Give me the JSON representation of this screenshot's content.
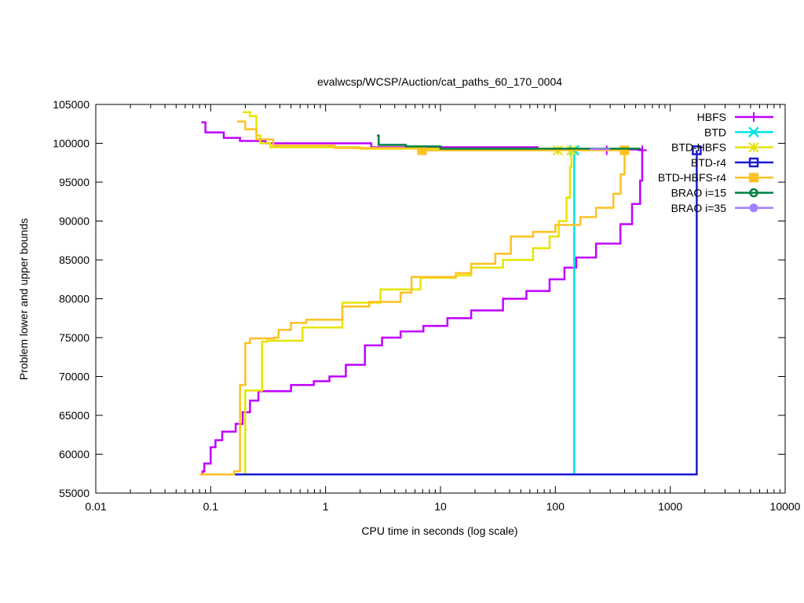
{
  "chart_data": {
    "type": "line",
    "title": "evalwcsp/WCSP/Auction/cat_paths_60_170_0004",
    "xlabel": "CPU time in seconds (log scale)",
    "ylabel": "Problem lower and upper bounds",
    "xscale": "log",
    "xlim": [
      0.01,
      10000
    ],
    "ylim": [
      55000,
      105000
    ],
    "xticks": [
      0.01,
      0.1,
      1,
      10,
      100,
      1000,
      10000
    ],
    "xtick_labels": [
      "0.01",
      "0.1",
      "1",
      "10",
      "100",
      "1000",
      "10000"
    ],
    "yticks": [
      55000,
      60000,
      65000,
      70000,
      75000,
      80000,
      85000,
      90000,
      95000,
      100000,
      105000
    ],
    "ytick_labels": [
      "55000",
      "60000",
      "65000",
      "70000",
      "75000",
      "80000",
      "85000",
      "90000",
      "95000",
      "100000",
      "105000"
    ],
    "legend_position": "top-right",
    "series": [
      {
        "name": "HBFS",
        "color": "#c000ff",
        "marker": "plus",
        "lower": [
          [
            0.083,
            57400
          ],
          [
            0.085,
            57800
          ],
          [
            0.088,
            58800
          ],
          [
            0.1,
            60900
          ],
          [
            0.11,
            61800
          ],
          [
            0.126,
            62900
          ],
          [
            0.165,
            63900
          ],
          [
            0.19,
            65400
          ],
          [
            0.22,
            66900
          ],
          [
            0.26,
            68100
          ],
          [
            0.5,
            68900
          ],
          [
            0.79,
            69400
          ],
          [
            1.08,
            70000
          ],
          [
            1.5,
            71500
          ],
          [
            2.2,
            74000
          ],
          [
            3.1,
            75000
          ],
          [
            4.5,
            75800
          ],
          [
            7.1,
            76500
          ],
          [
            11.5,
            77500
          ],
          [
            18.5,
            78500
          ],
          [
            35,
            80000
          ],
          [
            56,
            81000
          ],
          [
            89,
            82500
          ],
          [
            120,
            84000
          ],
          [
            152,
            85300
          ],
          [
            226,
            87100
          ],
          [
            368,
            89600
          ],
          [
            465,
            92200
          ],
          [
            547,
            95200
          ],
          [
            570,
            99100
          ]
        ],
        "upper": [
          [
            0.083,
            102700
          ],
          [
            0.09,
            101400
          ],
          [
            0.13,
            100700
          ],
          [
            0.18,
            100300
          ],
          [
            0.3,
            100000
          ],
          [
            2.5,
            99500
          ],
          [
            70,
            99200
          ],
          [
            570,
            99100
          ]
        ],
        "markers": [
          [
            280,
            99100
          ],
          [
            570,
            99100
          ]
        ]
      },
      {
        "name": "BTD",
        "color": "#00e5e5",
        "marker": "x",
        "lower": [
          [
            146,
            57400
          ],
          [
            146,
            99100
          ]
        ],
        "upper": [],
        "markers": [
          [
            146,
            99100
          ]
        ]
      },
      {
        "name": "BTD-HBFS",
        "color": "#e5e500",
        "marker": "star",
        "lower": [
          [
            0.09,
            57400
          ],
          [
            0.2,
            57400
          ],
          [
            0.2,
            68200
          ],
          [
            0.28,
            68200
          ],
          [
            0.28,
            74500
          ],
          [
            0.31,
            74600
          ],
          [
            0.58,
            74600
          ],
          [
            0.63,
            76300
          ],
          [
            1.27,
            76300
          ],
          [
            1.4,
            79500
          ],
          [
            2.8,
            79500
          ],
          [
            3.0,
            81200
          ],
          [
            5.3,
            81200
          ],
          [
            6.7,
            82700
          ],
          [
            13.6,
            83000
          ],
          [
            18.5,
            84000
          ],
          [
            35,
            85000
          ],
          [
            64,
            86500
          ],
          [
            89,
            88000
          ],
          [
            107,
            90000
          ],
          [
            125,
            93000
          ],
          [
            134,
            97000
          ],
          [
            138,
            99100
          ]
        ],
        "upper": [
          [
            0.19,
            104000
          ],
          [
            0.22,
            103500
          ],
          [
            0.25,
            101000
          ],
          [
            0.27,
            100000
          ],
          [
            0.33,
            99500
          ],
          [
            2,
            99300
          ],
          [
            138,
            99300
          ]
        ],
        "markers": [
          [
            105,
            99100
          ],
          [
            138,
            99100
          ]
        ]
      },
      {
        "name": "BTD-r4",
        "color": "#1a1ad0",
        "marker": "open-square",
        "lower": [
          [
            0.16,
            57400
          ],
          [
            1700,
            57400
          ],
          [
            1700,
            99100
          ]
        ],
        "upper": [],
        "markers": [
          [
            1700,
            99100
          ]
        ]
      },
      {
        "name": "BTD-HBFS-r4",
        "color": "#ffc020",
        "marker": "filled-square",
        "lower": [
          [
            0.08,
            57400
          ],
          [
            0.16,
            57400
          ],
          [
            0.16,
            57800
          ],
          [
            0.18,
            57800
          ],
          [
            0.18,
            68900
          ],
          [
            0.2,
            74300
          ],
          [
            0.22,
            74900
          ],
          [
            0.36,
            75000
          ],
          [
            0.39,
            76000
          ],
          [
            0.5,
            76900
          ],
          [
            0.68,
            77300
          ],
          [
            1.2,
            77300
          ],
          [
            1.4,
            79000
          ],
          [
            2.4,
            79600
          ],
          [
            4.5,
            80800
          ],
          [
            5.6,
            82800
          ],
          [
            13.6,
            83300
          ],
          [
            18.5,
            84500
          ],
          [
            30,
            85800
          ],
          [
            41,
            88000
          ],
          [
            64,
            88600
          ],
          [
            100,
            89500
          ],
          [
            165,
            90500
          ],
          [
            226,
            91700
          ],
          [
            320,
            93500
          ],
          [
            370,
            96000
          ],
          [
            400,
            99100
          ]
        ],
        "upper": [
          [
            0.17,
            102800
          ],
          [
            0.2,
            101800
          ],
          [
            0.25,
            100500
          ],
          [
            0.35,
            99700
          ],
          [
            1.2,
            99400
          ],
          [
            6.7,
            99100
          ],
          [
            400,
            99100
          ]
        ],
        "markers": [
          [
            6.9,
            99100
          ],
          [
            400,
            99100
          ]
        ]
      },
      {
        "name": "BRAO i=15",
        "color": "#008040",
        "marker": "open-circle",
        "lower": [],
        "upper": [
          [
            2.8,
            101000
          ],
          [
            2.9,
            99800
          ],
          [
            5,
            99600
          ],
          [
            10,
            99300
          ],
          [
            540,
            99200
          ]
        ],
        "markers": []
      },
      {
        "name": "BRAO i=35",
        "color": "#a080ff",
        "marker": "filled-circle",
        "lower": [],
        "upper": [
          [
            200,
            99250
          ],
          [
            300,
            99250
          ]
        ],
        "markers": []
      }
    ]
  }
}
